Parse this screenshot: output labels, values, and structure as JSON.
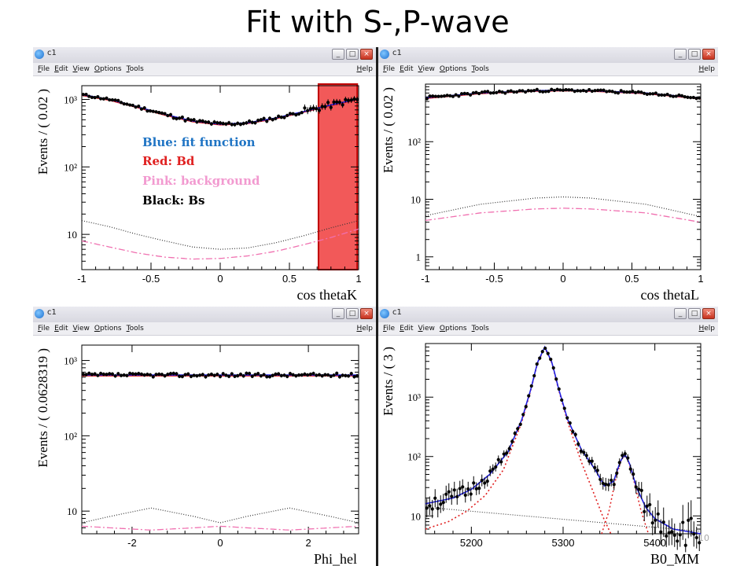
{
  "slide": {
    "title": "Fit with S-,P-wave",
    "page_number": "10"
  },
  "window": {
    "title": "c1",
    "menu": [
      "File",
      "Edit",
      "View",
      "Options",
      "Tools"
    ],
    "help": "Help",
    "buttons": [
      "_",
      "□",
      "×"
    ]
  },
  "legend": [
    {
      "text": "Blue: fit function",
      "color": "#1f74c4"
    },
    {
      "text": "Red: Bd",
      "color": "#e02020"
    },
    {
      "text": "Pink: background",
      "color": "#f29ad0"
    },
    {
      "text": "Black: Bs",
      "color": "#000000"
    }
  ],
  "colors": {
    "fit": "#2020e0",
    "bd": "#e02020",
    "background": "#f070b0",
    "bs": "#333333",
    "highlight": "#f03c3c"
  },
  "chart_data": [
    {
      "id": "cosK",
      "type": "line",
      "xlabel": "cos thetaK",
      "ylabel": "Events / ( 0.02 )",
      "xlim": [
        -1,
        1
      ],
      "ylim": [
        3,
        1600
      ],
      "yscale": "log",
      "xticks": [
        -1,
        -0.5,
        0,
        0.5,
        1
      ],
      "xtick_labels": [
        "-1",
        "-0.5",
        "0",
        "0.5",
        "1"
      ],
      "yticks": [
        10,
        100,
        1000
      ],
      "ytick_labels": [
        "10",
        "10²",
        "10³"
      ],
      "highlight_range": [
        0.71,
        0.99
      ],
      "series": [
        {
          "role": "fit",
          "x": [
            -1,
            -0.8,
            -0.6,
            -0.4,
            -0.2,
            0,
            0.2,
            0.4,
            0.6,
            0.8,
            1
          ],
          "y": [
            1180,
            1000,
            780,
            600,
            480,
            430,
            450,
            530,
            660,
            830,
            1020
          ]
        },
        {
          "role": "bd",
          "x": [
            -1,
            -0.8,
            -0.6,
            -0.4,
            -0.2,
            0,
            0.2,
            0.4,
            0.6,
            0.8,
            1
          ],
          "y": [
            1150,
            975,
            760,
            585,
            468,
            420,
            440,
            518,
            645,
            810,
            995
          ]
        },
        {
          "role": "bs",
          "x": [
            -1,
            -0.8,
            -0.6,
            -0.4,
            -0.2,
            0,
            0.2,
            0.4,
            0.6,
            0.8,
            1
          ],
          "y": [
            16,
            13,
            10,
            8,
            6.5,
            6,
            6.3,
            7.5,
            9.5,
            12.5,
            16
          ]
        },
        {
          "role": "background",
          "x": [
            -1,
            -0.8,
            -0.6,
            -0.4,
            -0.2,
            0,
            0.2,
            0.4,
            0.6,
            0.8,
            1
          ],
          "y": [
            8,
            6.5,
            5.3,
            4.6,
            4.3,
            4.4,
            4.8,
            5.6,
            7.0,
            9.0,
            12
          ]
        }
      ]
    },
    {
      "id": "cosL",
      "type": "line",
      "xlabel": "cos thetaL",
      "ylabel": "Events / ( 0.02 )",
      "xlim": [
        -1,
        1
      ],
      "ylim": [
        0.6,
        1000
      ],
      "yscale": "log",
      "xticks": [
        -1,
        -0.5,
        0,
        0.5,
        1
      ],
      "xtick_labels": [
        "-1",
        "-0.5",
        "0",
        "0.5",
        "1"
      ],
      "yticks": [
        1,
        10,
        100
      ],
      "ytick_labels": [
        "1",
        "10",
        "10²"
      ],
      "series": [
        {
          "role": "fit",
          "x": [
            -1,
            -0.6,
            -0.2,
            0,
            0.2,
            0.6,
            1
          ],
          "y": [
            580,
            700,
            770,
            780,
            770,
            700,
            570
          ]
        },
        {
          "role": "bd",
          "x": [
            -1,
            -0.6,
            -0.2,
            0,
            0.2,
            0.6,
            1
          ],
          "y": [
            565,
            685,
            755,
            765,
            755,
            685,
            555
          ]
        },
        {
          "role": "bs",
          "x": [
            -1,
            -0.6,
            -0.2,
            0,
            0.2,
            0.6,
            1
          ],
          "y": [
            5.2,
            8.2,
            10.5,
            11,
            10.5,
            8.2,
            5.0
          ]
        },
        {
          "role": "background",
          "x": [
            -1,
            -0.6,
            -0.2,
            0,
            0.2,
            0.6,
            1
          ],
          "y": [
            4.3,
            5.8,
            6.8,
            7.0,
            6.8,
            5.8,
            4.0
          ]
        }
      ]
    },
    {
      "id": "phi",
      "type": "line",
      "xlabel": "Phi_hel",
      "ylabel": "Events / ( 0.0628319 )",
      "xlim": [
        -3.14,
        3.14
      ],
      "ylim": [
        5,
        1600
      ],
      "yscale": "log",
      "xticks": [
        -2,
        0,
        2
      ],
      "xtick_labels": [
        "-2",
        "0",
        "2"
      ],
      "yticks": [
        10,
        100,
        1000
      ],
      "ytick_labels": [
        "10",
        "10²",
        "10³"
      ],
      "series": [
        {
          "role": "fit",
          "x": [
            -3.14,
            3.14
          ],
          "y": [
            640,
            640
          ]
        },
        {
          "role": "bd",
          "x": [
            -3.14,
            3.14
          ],
          "y": [
            625,
            625
          ]
        },
        {
          "role": "bs",
          "x": [
            -3.14,
            -2.5,
            -1.57,
            -0.6,
            0,
            0.6,
            1.57,
            2.5,
            3.14
          ],
          "y": [
            7,
            8.5,
            11,
            8.5,
            7,
            8.5,
            11,
            8.5,
            7
          ]
        },
        {
          "role": "background",
          "x": [
            -3.14,
            -2.5,
            -1.57,
            -0.6,
            0,
            0.6,
            1.57,
            2.5,
            3.14
          ],
          "y": [
            6.3,
            6.0,
            5.6,
            6.0,
            6.3,
            6.0,
            5.6,
            6.0,
            6.3
          ]
        }
      ]
    },
    {
      "id": "mass",
      "type": "line",
      "xlabel": "B0_MM",
      "ylabel": "Events / ( 3 )",
      "xlim": [
        5150,
        5450
      ],
      "ylim": [
        5,
        8000
      ],
      "yscale": "log",
      "xticks": [
        5200,
        5300,
        5400
      ],
      "xtick_labels": [
        "5200",
        "5300",
        "5400"
      ],
      "yticks": [
        10,
        100,
        1000
      ],
      "ytick_labels": [
        "10",
        "10²",
        "10³"
      ],
      "series": [
        {
          "role": "fit",
          "x": [
            5150,
            5180,
            5200,
            5220,
            5240,
            5255,
            5265,
            5272,
            5280,
            5288,
            5295,
            5305,
            5320,
            5335,
            5345,
            5355,
            5362,
            5367,
            5372,
            5380,
            5390,
            5400,
            5420,
            5450
          ],
          "y": [
            16,
            20,
            28,
            50,
            120,
            420,
            1400,
            3800,
            7000,
            3800,
            1400,
            420,
            130,
            60,
            32,
            38,
            80,
            110,
            80,
            30,
            14,
            9,
            6,
            5
          ]
        },
        {
          "role": "bd",
          "x": [
            5150,
            5175,
            5195,
            5215,
            5235,
            5255,
            5265,
            5272,
            5280,
            5288,
            5295,
            5305,
            5320,
            5333,
            5343,
            5352
          ],
          "y": [
            6,
            8,
            12,
            22,
            60,
            380,
            1350,
            3700,
            6800,
            3700,
            1350,
            380,
            80,
            25,
            10,
            5
          ]
        },
        {
          "role": "bs",
          "x": [
            5342,
            5350,
            5357,
            5363,
            5367,
            5371,
            5377,
            5385,
            5393
          ],
          "y": [
            5,
            12,
            40,
            85,
            105,
            85,
            40,
            12,
            5
          ]
        },
        {
          "role": "background",
          "x": [
            5150,
            5450
          ],
          "y": [
            14,
            5.5
          ]
        }
      ]
    }
  ]
}
